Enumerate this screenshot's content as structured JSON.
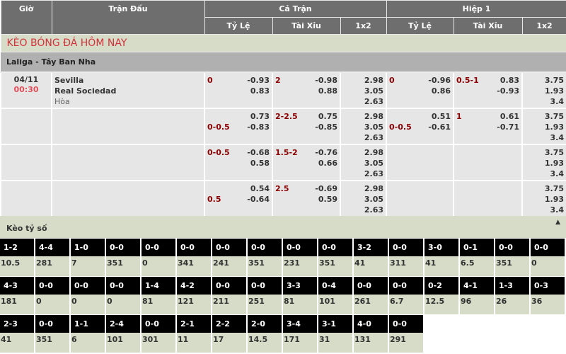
{
  "header": {
    "gio": "Giờ",
    "tran_dau": "Trận Đấu",
    "ca_tran": "Cả Trận",
    "hiep1": "Hiệp 1",
    "sub": [
      "Tỷ Lệ",
      "Tài Xỉu",
      "1x2",
      "Tỷ Lệ",
      "Tài Xỉu",
      "1x2"
    ]
  },
  "section_title": "KÈO BÓNG ĐÁ HÔM NAY",
  "league": "Laliga - Tây Ban Nha",
  "match": {
    "date": "04/11",
    "time": "00:30",
    "home": "Sevilla",
    "away": "Real Sociedad",
    "draw": "Hòa"
  },
  "rows": [
    {
      "ft_hdp": {
        "label": "0",
        "label_line": 0,
        "v": [
          "-0.93",
          "0.83"
        ]
      },
      "ft_ou": {
        "label": "2",
        "label_line": 0,
        "v": [
          "-0.98",
          "0.88"
        ]
      },
      "ft_1x2": [
        "2.98",
        "3.05",
        "2.63"
      ],
      "h1_hdp": {
        "label": "0",
        "label_line": 0,
        "v": [
          "-0.96",
          "0.86"
        ]
      },
      "h1_ou": {
        "label": "0.5-1",
        "label_line": 0,
        "v": [
          "0.83",
          "-0.93"
        ]
      },
      "h1_1x2": [
        "3.75",
        "1.93",
        "3.4"
      ]
    },
    {
      "ft_hdp": {
        "label": "0-0.5",
        "label_line": 1,
        "v": [
          "0.73",
          "-0.83"
        ]
      },
      "ft_ou": {
        "label": "2-2.5",
        "label_line": 0,
        "v": [
          "0.75",
          "-0.85"
        ]
      },
      "ft_1x2": [
        "2.98",
        "3.05",
        "2.63"
      ],
      "h1_hdp": {
        "label": "0-0.5",
        "label_line": 1,
        "v": [
          "0.51",
          "-0.61"
        ]
      },
      "h1_ou": {
        "label": "1",
        "label_line": 0,
        "v": [
          "0.61",
          "-0.71"
        ]
      },
      "h1_1x2": [
        "3.75",
        "1.93",
        "3.4"
      ]
    },
    {
      "ft_hdp": {
        "label": "0-0.5",
        "label_line": 0,
        "v": [
          "-0.68",
          "0.58"
        ]
      },
      "ft_ou": {
        "label": "1.5-2",
        "label_line": 0,
        "v": [
          "-0.76",
          "0.66"
        ]
      },
      "ft_1x2": [
        "2.98",
        "3.05",
        "2.63"
      ],
      "h1_hdp": null,
      "h1_ou": null,
      "h1_1x2": [
        "3.75",
        "1.93",
        "3.4"
      ]
    },
    {
      "ft_hdp": {
        "label": "0.5",
        "label_line": 1,
        "v": [
          "0.54",
          "-0.64"
        ]
      },
      "ft_ou": {
        "label": "2.5",
        "label_line": 0,
        "v": [
          "-0.69",
          "0.59"
        ]
      },
      "ft_1x2": [
        "2.98",
        "3.05",
        "2.63"
      ],
      "h1_hdp": null,
      "h1_ou": null,
      "h1_1x2": [
        "3.75",
        "1.93",
        "3.4"
      ]
    }
  ],
  "score_title": "Kèo tỷ số",
  "collapse_icon": "triangle-up",
  "scores": [
    [
      [
        "1-2",
        "10.5"
      ],
      [
        "4-4",
        "281"
      ],
      [
        "1-0",
        "7"
      ],
      [
        "0-0",
        "351"
      ],
      [
        "0-0",
        "0"
      ],
      [
        "0-0",
        "341"
      ],
      [
        "0-0",
        "241"
      ],
      [
        "0-0",
        "351"
      ],
      [
        "0-0",
        "231"
      ],
      [
        "0-0",
        "351"
      ],
      [
        "3-2",
        "41"
      ],
      [
        "0-0",
        "311"
      ],
      [
        "3-0",
        "41"
      ],
      [
        "0-1",
        "6.5"
      ],
      [
        "0-0",
        "351"
      ],
      [
        "0-0",
        "0"
      ]
    ],
    [
      [
        "4-3",
        "181"
      ],
      [
        "0-0",
        "0"
      ],
      [
        "0-0",
        "0"
      ],
      [
        "0-0",
        "0"
      ],
      [
        "1-4",
        "81"
      ],
      [
        "4-2",
        "121"
      ],
      [
        "0-0",
        "211"
      ],
      [
        "0-0",
        "251"
      ],
      [
        "3-3",
        "81"
      ],
      [
        "0-4",
        "101"
      ],
      [
        "0-0",
        "261"
      ],
      [
        "0-0",
        "6.7"
      ],
      [
        "0-2",
        "12.5"
      ],
      [
        "4-1",
        "96"
      ],
      [
        "1-3",
        "26"
      ],
      [
        "0-3",
        "36"
      ]
    ],
    [
      [
        "2-3",
        "41"
      ],
      [
        "0-0",
        "351"
      ],
      [
        "1-1",
        "6"
      ],
      [
        "2-4",
        "101"
      ],
      [
        "0-0",
        "301"
      ],
      [
        "2-1",
        "11"
      ],
      [
        "2-2",
        "17"
      ],
      [
        "2-0",
        "14.5"
      ],
      [
        "3-4",
        "171"
      ],
      [
        "3-1",
        "31"
      ],
      [
        "4-0",
        "131"
      ],
      [
        "0-0",
        "291"
      ]
    ]
  ]
}
